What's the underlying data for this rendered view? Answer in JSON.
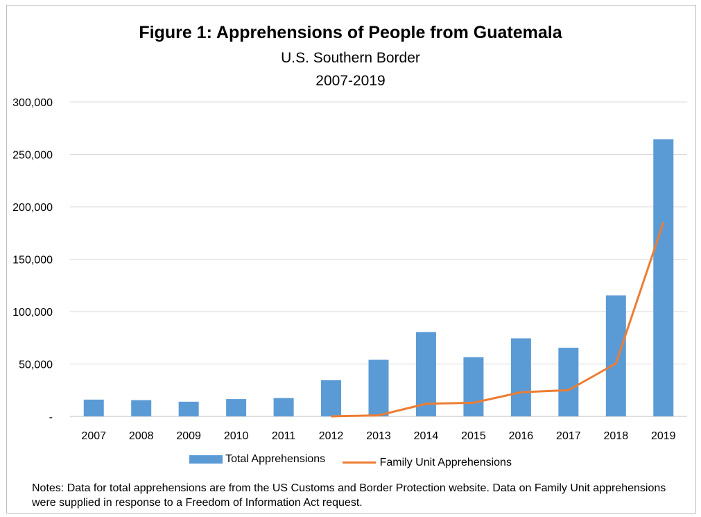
{
  "chart_data": {
    "type": "bar",
    "title": "Figure 1: Apprehensions of People from Guatemala",
    "subtitle": "U.S. Southern Border",
    "subtitle2": "2007-2019",
    "categories": [
      "2007",
      "2008",
      "2009",
      "2010",
      "2011",
      "2012",
      "2013",
      "2014",
      "2015",
      "2016",
      "2017",
      "2018",
      "2019"
    ],
    "ylim": [
      0,
      300000
    ],
    "yticks": [
      0,
      50000,
      100000,
      150000,
      200000,
      250000,
      300000
    ],
    "ytick_labels": [
      "-",
      "50,000",
      "100,000",
      "150,000",
      "200,000",
      "250,000",
      "300,000"
    ],
    "grid": true,
    "legend_position": "bottom",
    "series": [
      {
        "name": "Total Apprehensions",
        "type": "bar",
        "color": "#5b9bd5",
        "values": [
          16000,
          15500,
          14000,
          16500,
          17500,
          34500,
          54000,
          80500,
          56500,
          74500,
          65500,
          115500,
          264500
        ]
      },
      {
        "name": "Family Unit Apprehensions",
        "type": "line",
        "color": "#ed7d31",
        "values": [
          null,
          null,
          null,
          null,
          null,
          0,
          1000,
          12000,
          13000,
          23000,
          25000,
          50500,
          185000
        ]
      }
    ]
  },
  "notes": "Notes: Data for total apprehensions are from the US Customs and Border Protection website. Data on Family Unit apprehensions were supplied in response to a Freedom of Information Act request."
}
